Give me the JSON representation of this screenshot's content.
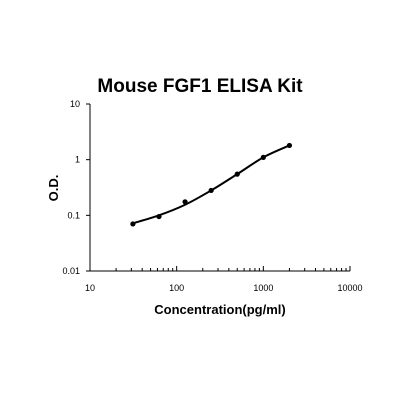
{
  "chart_data": {
    "type": "scatter",
    "title": "Mouse FGF1 ELISA Kit",
    "xlabel": "Concentration(pg/ml)",
    "ylabel": "O.D.",
    "x_scale": "log",
    "y_scale": "log",
    "xlim": [
      10,
      10000
    ],
    "ylim": [
      0.01,
      10
    ],
    "x_ticks": [
      "10",
      "100",
      "1000",
      "10000"
    ],
    "y_ticks": [
      "0.01",
      "0.1",
      "1",
      "10"
    ],
    "grid": false,
    "legend": "none",
    "series": [
      {
        "x": [
          31.25,
          62.5,
          125,
          250,
          500,
          1000,
          2000
        ],
        "y": [
          0.07,
          0.095,
          0.175,
          0.28,
          0.55,
          1.1,
          1.8
        ]
      }
    ],
    "fit_curve": {
      "x": [
        31.25,
        62.5,
        125,
        250,
        500,
        1000,
        2000
      ],
      "y": [
        0.072,
        0.1,
        0.155,
        0.28,
        0.55,
        1.1,
        1.8
      ]
    },
    "colors": {
      "points": "#000000",
      "curve": "#000000",
      "axis": "#000000"
    }
  }
}
